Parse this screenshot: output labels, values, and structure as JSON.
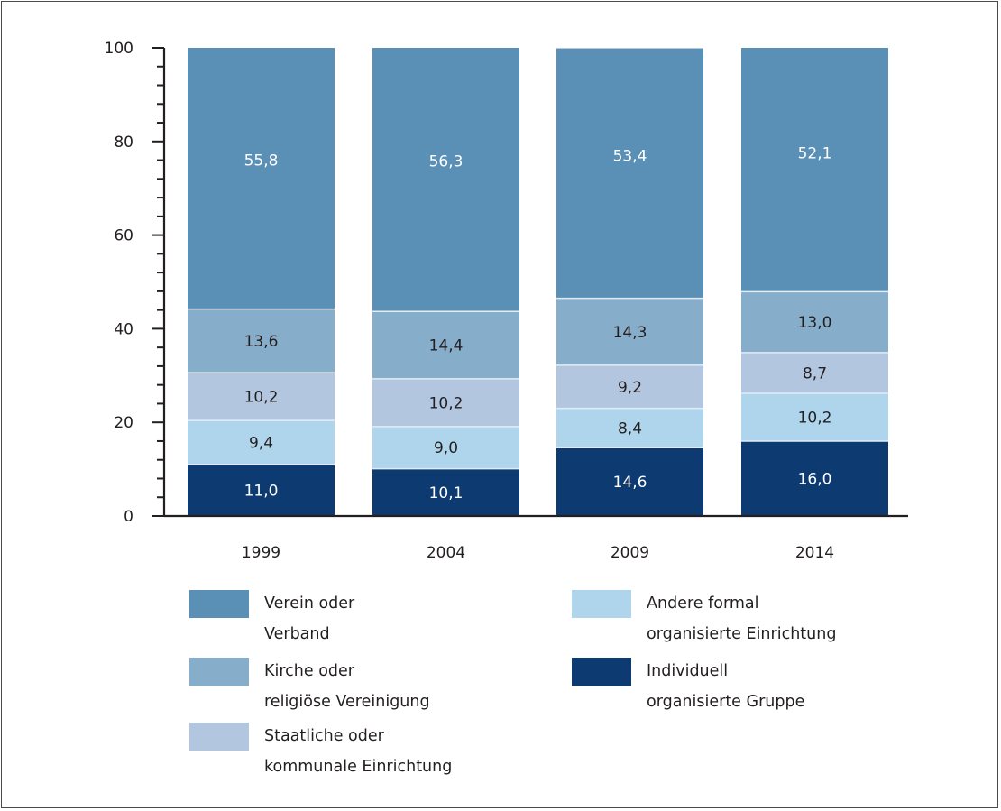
{
  "chart_data": {
    "type": "bar",
    "stacked": true,
    "categories": [
      "1999",
      "2004",
      "2009",
      "2014"
    ],
    "ylim": [
      0,
      100
    ],
    "yticks": [
      0,
      20,
      40,
      60,
      80,
      100
    ],
    "ytick_labels": [
      "0",
      "20",
      "40",
      "60",
      "80",
      "100"
    ],
    "legend_position": "bottom",
    "series": [
      {
        "name": "Individuell organisierte Gruppe",
        "legend_lines": [
          "Individuell",
          "organisierte Gruppe"
        ],
        "color": "#0d3a70",
        "label_color": "#ffffff",
        "values": [
          11.0,
          10.1,
          14.6,
          16.0
        ],
        "labels": [
          "11,0",
          "10,1",
          "14,6",
          "16,0"
        ]
      },
      {
        "name": "Andere formal organisierte Einrichtung",
        "legend_lines": [
          "Andere formal",
          "organisierte Einrichtung"
        ],
        "color": "#aed5ec",
        "label_color": "#231f20",
        "values": [
          9.4,
          9.0,
          8.4,
          10.2
        ],
        "labels": [
          "9,4",
          "9,0",
          "8,4",
          "10,2"
        ]
      },
      {
        "name": "Staatliche oder kommunale Einrichtung",
        "legend_lines": [
          "Staatliche oder",
          "kommunale Einrichtung"
        ],
        "color": "#b2c6e0",
        "label_color": "#231f20",
        "values": [
          10.2,
          10.2,
          9.2,
          8.7
        ],
        "labels": [
          "10,2",
          "10,2",
          "9,2",
          "8,7"
        ]
      },
      {
        "name": "Kirche oder religiöse Vereinigung",
        "legend_lines": [
          "Kirche oder",
          "religiöse Vereinigung"
        ],
        "color": "#86adca",
        "label_color": "#231f20",
        "values": [
          13.6,
          14.4,
          14.3,
          13.0
        ],
        "labels": [
          "13,6",
          "14,4",
          "14,3",
          "13,0"
        ]
      },
      {
        "name": "Verein oder Verband",
        "legend_lines": [
          "Verein oder",
          "Verband"
        ],
        "color": "#5a8fb6",
        "label_color": "#ffffff",
        "values": [
          55.8,
          56.3,
          53.4,
          52.1
        ],
        "labels": [
          "55,8",
          "56,3",
          "53,4",
          "52,1"
        ]
      }
    ]
  }
}
